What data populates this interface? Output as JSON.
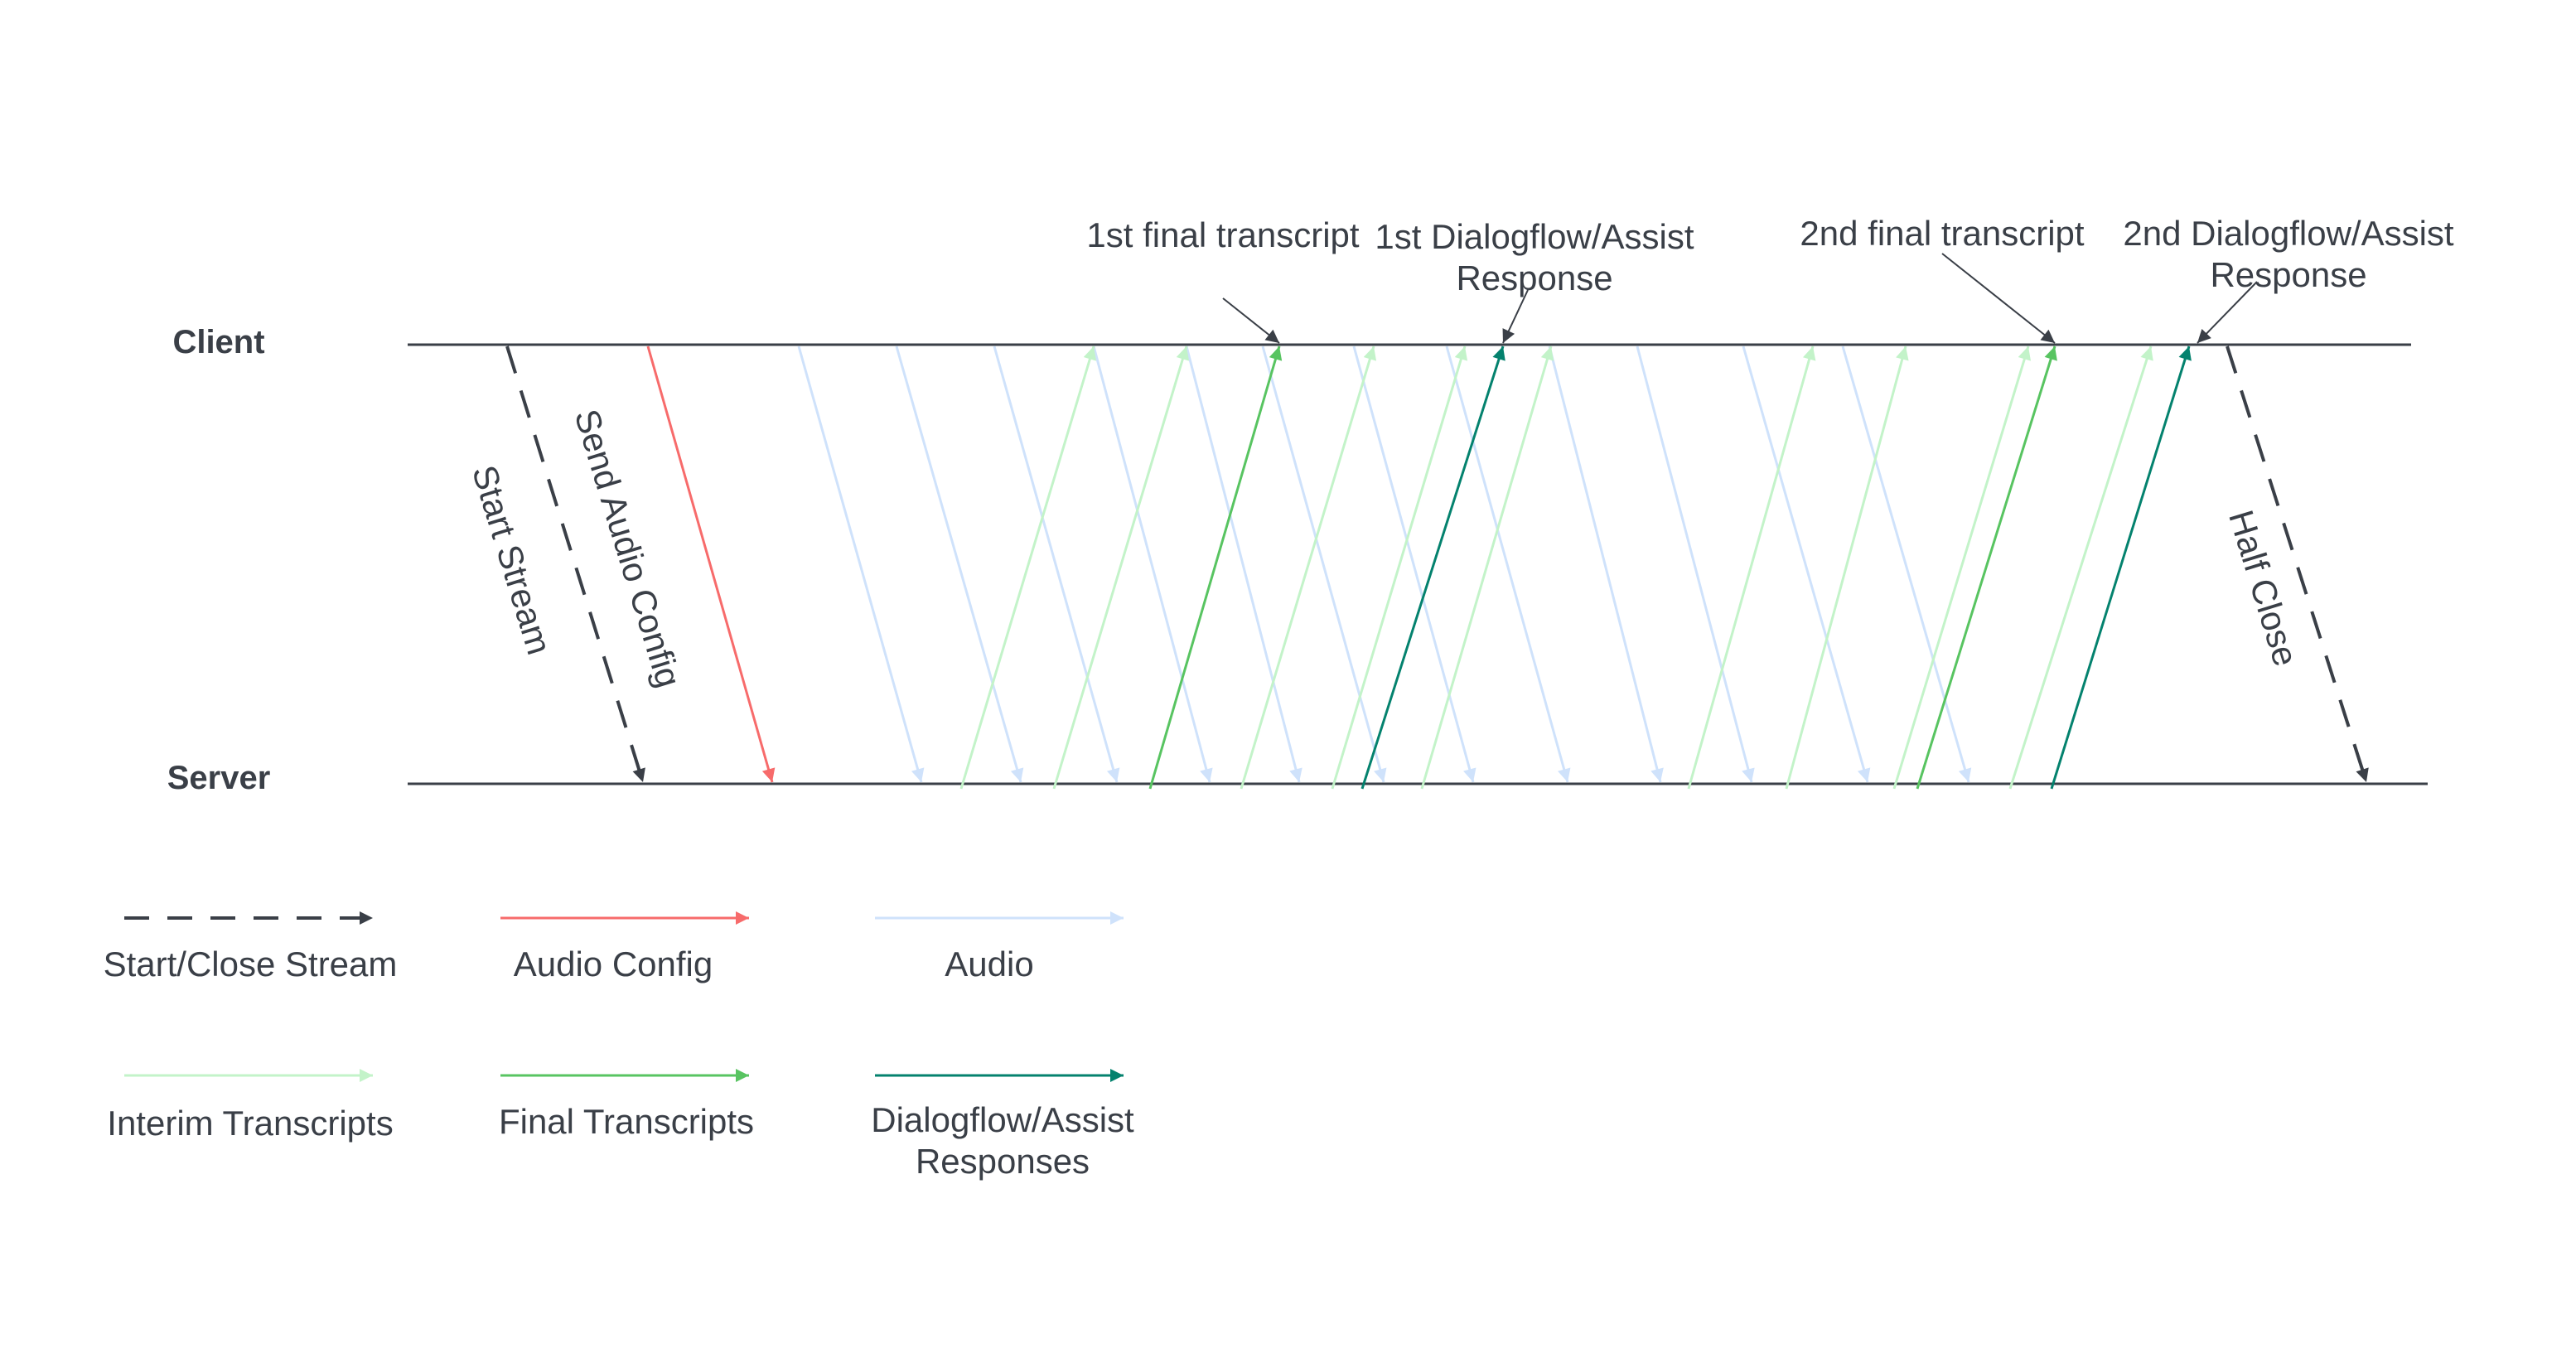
{
  "lanes": {
    "client": "Client",
    "server": "Server"
  },
  "annotations": {
    "first_final": "1st final transcript",
    "first_df_line1": "1st Dialogflow/Assist",
    "first_df_line2": "Response",
    "second_final": "2nd final transcript",
    "second_df_line1": "2nd Dialogflow/Assist",
    "second_df_line2": "Response"
  },
  "arrow_labels": {
    "start_stream": "Start Stream",
    "send_audio_config": "Send Audio Config",
    "half_close": "Half Close"
  },
  "legend": [
    {
      "label": "Start/Close Stream",
      "style": "dashed",
      "color": "#3a3f47"
    },
    {
      "label": "Audio Config",
      "style": "solid",
      "color": "#f76b6b"
    },
    {
      "label": "Audio",
      "style": "solid",
      "color": "#cfe2fb"
    },
    {
      "label": "Interim Transcripts",
      "style": "solid",
      "color": "#c3f3c9"
    },
    {
      "label": "Final Transcripts",
      "style": "solid",
      "color": "#58c461"
    },
    {
      "label_line1": "Dialogflow/Assist",
      "label_line2": "Responses",
      "style": "solid",
      "color": "#04826e"
    }
  ],
  "colors": {
    "line": "#3a3f47",
    "stream": "#3a3f47",
    "audio_config": "#f76b6b",
    "audio": "#cfe2fb",
    "interim": "#c3f3c9",
    "final": "#58c461",
    "dialogflow": "#04826e"
  }
}
